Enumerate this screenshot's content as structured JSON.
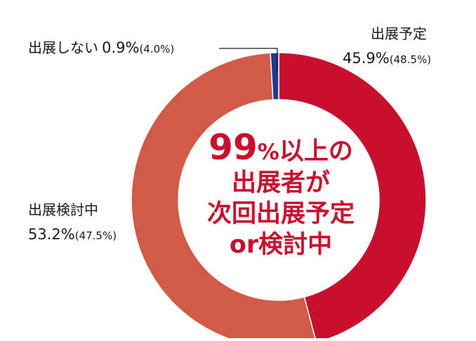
{
  "chart_data": {
    "type": "pie",
    "style": "donut",
    "slices": [
      {
        "label": "出展予定",
        "value": 45.9,
        "value_text": "45.9%",
        "prev_text": "(48.5%)",
        "color": "#c8102e"
      },
      {
        "label": "出展検討中",
        "value": 53.2,
        "value_text": "53.2%",
        "prev_text": "(47.5%)",
        "color": "#d25a48"
      },
      {
        "label": "出展しない",
        "value": 0.9,
        "value_text": "0.9%",
        "prev_text": "(4.0%)",
        "color": "#1f3a93"
      }
    ],
    "center": {
      "line1_num": "99",
      "line1_pct": "%",
      "line1_rest": "以上の",
      "line2": "出展者が",
      "line3": "次回出展予定",
      "line4": "or検討中"
    },
    "colors": {
      "highlight": "#c8102e",
      "separator": "#ffffff"
    }
  }
}
